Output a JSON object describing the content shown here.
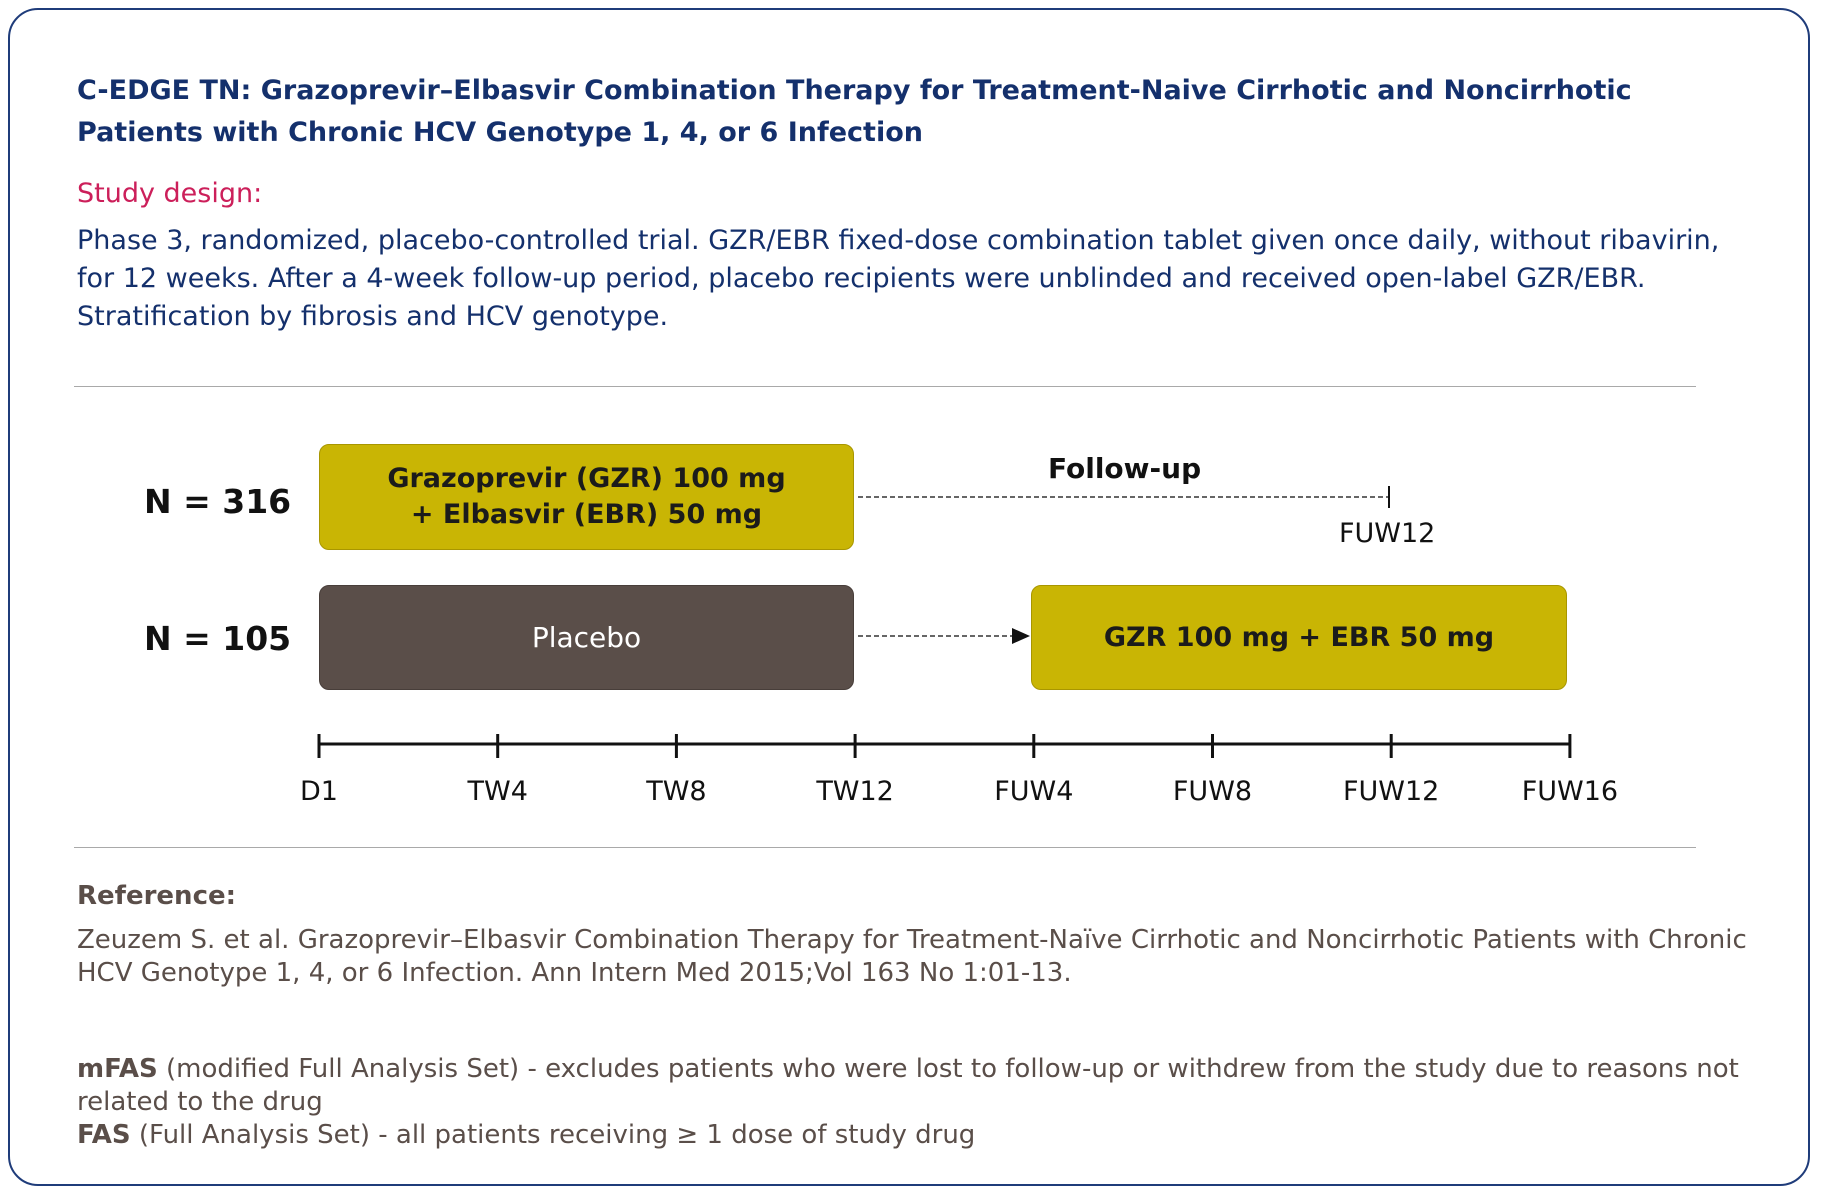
{
  "title": "C-EDGE TN: Grazoprevir–Elbasvir Combination Therapy for Treatment-Naive Cirrhotic and Noncirrhotic Patients with Chronic HCV Genotype 1, 4, or 6 Infection",
  "study_design": {
    "label": "Study design:",
    "text": "Phase 3, randomized, placebo-controlled trial. GZR/EBR fixed-dose combination tablet given once daily, without ribavirin, for 12 weeks. After a 4-week follow-up period, placebo recipients were unblinded and received open-label GZR/EBR. Stratification by fibrosis and HCV genotype."
  },
  "diagram": {
    "arms": [
      {
        "n_label": "N = 316",
        "box_line1": "Grazoprevir (GZR) 100 mg",
        "box_line2": "+ Elbasvir (EBR) 50 mg",
        "followup_label": "Follow-up",
        "end_label": "FUW12"
      },
      {
        "n_label": "N = 105",
        "placebo_label": "Placebo",
        "crossover_label": "GZR 100 mg + EBR 50 mg"
      }
    ],
    "timeline": [
      "D1",
      "TW4",
      "TW8",
      "TW12",
      "FUW4",
      "FUW8",
      "FUW12",
      "FUW16"
    ]
  },
  "reference": {
    "label": "Reference:",
    "text": "Zeuzem S. et al. Grazoprevir–Elbasvir Combination Therapy for Treatment-Naïve Cirrhotic and Noncirrhotic Patients with Chronic HCV Genotype 1, 4, or 6 Infection. Ann Intern Med 2015;Vol 163 No 1:01-13."
  },
  "notes": [
    {
      "term": "mFAS",
      "definition": " (modified Full Analysis Set) - excludes patients who were lost to follow-up or withdrew from the study due to reasons not related to the drug"
    },
    {
      "term": "FAS",
      "definition": " (Full Analysis Set) - all patients receiving ≥ 1 dose of study drug"
    }
  ],
  "colors": {
    "title": "#14306c",
    "accent": "#cc1f5a",
    "active_box": "#c9b504",
    "placebo_box": "#5a4e49",
    "reference_text": "#5a4e49"
  }
}
